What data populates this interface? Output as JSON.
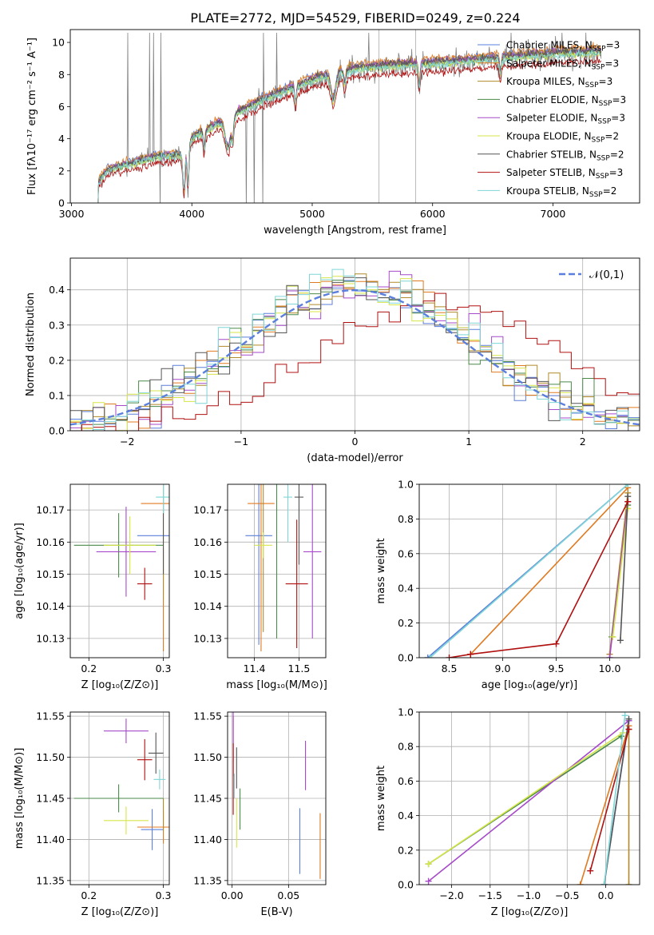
{
  "figure": {
    "title": "PLATE=2772, MJD=54529, FIBERID=0249, z=0.224"
  },
  "models": [
    {
      "name": "Chabrier MILES",
      "nssp": 3,
      "color": "#5b7fdc"
    },
    {
      "name": "Salpeter MILES",
      "nssp": 3,
      "color": "#e07a22"
    },
    {
      "name": "Kroupa MILES",
      "nssp": 3,
      "color": "#b08a2a"
    },
    {
      "name": "Chabrier ELODIE",
      "nssp": 3,
      "color": "#4a8a4a"
    },
    {
      "name": "Salpeter ELODIE",
      "nssp": 3,
      "color": "#a64ac9"
    },
    {
      "name": "Kroupa ELODIE",
      "nssp": 2,
      "color": "#d7e64a"
    },
    {
      "name": "Chabrier STELIB",
      "nssp": 2,
      "color": "#555555"
    },
    {
      "name": "Salpeter STELIB",
      "nssp": 3,
      "color": "#b01010"
    },
    {
      "name": "Kroupa STELIB",
      "nssp": 2,
      "color": "#7fd6d6"
    }
  ],
  "chart_data": [
    {
      "id": "spectrum",
      "type": "line",
      "xlabel": "wavelength [Angstrom, rest frame]",
      "ylabel": "Flux [fλ10⁻¹⁷ erg cm⁻² s⁻¹ A⁻¹]",
      "xlim": [
        2990,
        7720
      ],
      "ylim": [
        0,
        10.8
      ],
      "xticks": [
        3000,
        4000,
        5000,
        6000,
        7000
      ],
      "yticks": [
        0,
        2,
        4,
        6,
        8,
        10
      ],
      "data_start": 3220,
      "data_end": 7400,
      "continuum_knots": {
        "x": [
          3220,
          3300,
          3500,
          3700,
          3900,
          4000,
          4200,
          4400,
          4600,
          5000,
          5300,
          5500,
          6000,
          6500,
          7000,
          7400
        ],
        "y": [
          1.2,
          2.0,
          2.4,
          2.8,
          2.9,
          4.0,
          4.8,
          5.6,
          6.4,
          7.6,
          8.2,
          8.4,
          8.6,
          8.9,
          9.2,
          9.3
        ]
      },
      "grid": false,
      "legend": "top-right"
    },
    {
      "id": "residuals",
      "type": "histogram",
      "xlabel": "(data-model)/error",
      "ylabel": "Normed distribution",
      "xlim": [
        -2.5,
        2.5
      ],
      "ylim": [
        0,
        0.49
      ],
      "xticks": [
        -2,
        -1,
        0,
        1,
        2
      ],
      "yticks": [
        0.0,
        0.1,
        0.2,
        0.3,
        0.4
      ],
      "bin_width": 0.1,
      "reference": {
        "label": "𝒩(0,1)",
        "mean": 0,
        "sigma": 1,
        "color": "#5b7fdc"
      },
      "series_shift": [
        0.45,
        0.5,
        0.55,
        0.48,
        0.52,
        0.5,
        0.5,
        0.95,
        0.42
      ],
      "series_sigma": [
        1.02,
        0.98,
        1.0,
        1.01,
        0.99,
        1.0,
        1.0,
        1.05,
        0.97
      ],
      "grid": true,
      "legend": "top-right"
    },
    {
      "id": "age_vs_Z",
      "type": "errorbar",
      "xlabel": "Z [log₁₀(Z/Z⊙)]",
      "ylabel": "age  [log₁₀(age/yr)]",
      "xlim": [
        0.175,
        0.308
      ],
      "ylim": [
        10.124,
        10.178
      ],
      "xticks": [
        0.2,
        0.3
      ],
      "yticks": [
        10.13,
        10.14,
        10.15,
        10.16,
        10.17
      ],
      "grid": true,
      "points": [
        {
          "x": 0.3,
          "y": 10.162,
          "xerr": 0.035,
          "yerr": 0.0
        },
        {
          "x": 0.3,
          "y": 10.172,
          "xerr": 0.03,
          "yerr": 0.046
        },
        {
          "x": 0.3,
          "y": 10.15,
          "xerr": 0.0,
          "yerr": 0.008
        },
        {
          "x": 0.24,
          "y": 10.159,
          "xerr": 0.06,
          "yerr": 0.01
        },
        {
          "x": 0.25,
          "y": 10.157,
          "xerr": 0.04,
          "yerr": 0.014
        },
        {
          "x": 0.255,
          "y": 10.159,
          "xerr": 0.035,
          "yerr": 0.009
        },
        {
          "x": 0.3,
          "y": 10.17,
          "xerr": 0.0,
          "yerr": 0.02
        },
        {
          "x": 0.275,
          "y": 10.147,
          "xerr": 0.01,
          "yerr": 0.005
        },
        {
          "x": 0.3,
          "y": 10.174,
          "xerr": 0.01,
          "yerr": 0.005
        }
      ]
    },
    {
      "id": "age_vs_mass",
      "type": "errorbar",
      "xlabel": "mass [log₁₀(M/M⊙)]",
      "ylabel": "",
      "xlim": [
        11.34,
        11.56
      ],
      "ylim": [
        10.124,
        10.178
      ],
      "xticks": [
        11.4,
        11.5
      ],
      "yticks": [
        10.13,
        10.14,
        10.15,
        10.16,
        10.17
      ],
      "grid": true,
      "points": [
        {
          "x": 11.41,
          "y": 10.162,
          "xerr": 0.03,
          "yerr": 0.034
        },
        {
          "x": 11.415,
          "y": 10.172,
          "xerr": 0.03,
          "yerr": 0.046
        },
        {
          "x": 11.42,
          "y": 10.16,
          "xerr": 0.0,
          "yerr": 0.028
        },
        {
          "x": 11.45,
          "y": 10.159,
          "xerr": 0.0,
          "yerr": 0.029
        },
        {
          "x": 11.53,
          "y": 10.157,
          "xerr": 0.02,
          "yerr": 0.027
        },
        {
          "x": 11.42,
          "y": 10.159,
          "xerr": 0.02,
          "yerr": 0.004
        },
        {
          "x": 11.5,
          "y": 10.174,
          "xerr": 0.01,
          "yerr": 0.021
        },
        {
          "x": 11.495,
          "y": 10.147,
          "xerr": 0.025,
          "yerr": 0.02
        },
        {
          "x": 11.475,
          "y": 10.174,
          "xerr": 0.01,
          "yerr": 0.014
        }
      ]
    },
    {
      "id": "weight_vs_age",
      "type": "line",
      "xlabel": "age  [log₁₀(age/yr)]",
      "ylabel": "mass weight",
      "xlim": [
        8.22,
        10.28
      ],
      "ylim": [
        0,
        1.0
      ],
      "xticks": [
        8.5,
        9.0,
        9.5,
        10.0
      ],
      "yticks": [
        0.0,
        0.2,
        0.4,
        0.6,
        0.8,
        1.0
      ],
      "grid": true,
      "series": [
        {
          "x": [
            8.3,
            10.17
          ],
          "y": [
            0.0,
            1.0
          ]
        },
        {
          "x": [
            8.7,
            10.17
          ],
          "y": [
            0.02,
            0.98
          ]
        },
        {
          "x": [
            10.0,
            10.17
          ],
          "y": [
            0.02,
            0.95
          ]
        },
        {
          "x": [
            10.02,
            10.17
          ],
          "y": [
            0.12,
            0.88
          ]
        },
        {
          "x": [
            10.0,
            10.17
          ],
          "y": [
            0.0,
            0.9
          ]
        },
        {
          "x": [
            10.03,
            10.17
          ],
          "y": [
            0.12,
            0.86
          ]
        },
        {
          "x": [
            10.1,
            10.17
          ],
          "y": [
            0.1,
            0.93
          ]
        },
        {
          "x": [
            8.5,
            8.7,
            9.5,
            10.17
          ],
          "y": [
            0.0,
            0.02,
            0.08,
            0.9
          ]
        },
        {
          "x": [
            8.32,
            10.17
          ],
          "y": [
            0.0,
            1.0
          ]
        }
      ]
    },
    {
      "id": "mass_vs_Z",
      "type": "errorbar",
      "xlabel": "Z [log₁₀(Z/Z⊙)]",
      "ylabel": "mass [log₁₀(M/M⊙)]",
      "xlim": [
        0.175,
        0.308
      ],
      "ylim": [
        11.345,
        11.555
      ],
      "xticks": [
        0.2,
        0.3
      ],
      "yticks": [
        11.35,
        11.4,
        11.45,
        11.5,
        11.55
      ],
      "grid": true,
      "points": [
        {
          "x": 0.285,
          "y": 11.412,
          "xerr": 0.015,
          "yerr": 0.025
        },
        {
          "x": 0.3,
          "y": 11.415,
          "xerr": 0.035,
          "yerr": 0.02
        },
        {
          "x": 0.3,
          "y": 11.43,
          "xerr": 0.0,
          "yerr": 0.02
        },
        {
          "x": 0.24,
          "y": 11.45,
          "xerr": 0.06,
          "yerr": 0.017
        },
        {
          "x": 0.25,
          "y": 11.532,
          "xerr": 0.03,
          "yerr": 0.015
        },
        {
          "x": 0.25,
          "y": 11.423,
          "xerr": 0.03,
          "yerr": 0.017
        },
        {
          "x": 0.29,
          "y": 11.505,
          "xerr": 0.01,
          "yerr": 0.025
        },
        {
          "x": 0.275,
          "y": 11.497,
          "xerr": 0.01,
          "yerr": 0.025
        },
        {
          "x": 0.295,
          "y": 11.473,
          "xerr": 0.008,
          "yerr": 0.012
        }
      ]
    },
    {
      "id": "mass_vs_ebv",
      "type": "errorbar",
      "xlabel": "E(B-V)",
      "ylabel": "",
      "xlim": [
        -0.004,
        0.083
      ],
      "ylim": [
        11.345,
        11.555
      ],
      "xticks": [
        0.0,
        0.05
      ],
      "yticks": [
        11.35,
        11.4,
        11.45,
        11.5,
        11.55
      ],
      "grid": true,
      "points": [
        {
          "x": 0.06,
          "y": 11.398,
          "xerr": 0,
          "yerr": 0.04
        },
        {
          "x": 0.078,
          "y": 11.392,
          "xerr": 0,
          "yerr": 0.04
        },
        {
          "x": 0.001,
          "y": 11.49,
          "xerr": 0,
          "yerr": 0.06
        },
        {
          "x": 0.007,
          "y": 11.437,
          "xerr": 0,
          "yerr": 0.025
        },
        {
          "x": 0.001,
          "y": 11.525,
          "xerr": 0,
          "yerr": 0.03
        },
        {
          "x": 0.004,
          "y": 11.42,
          "xerr": 0,
          "yerr": 0.03
        },
        {
          "x": 0.004,
          "y": 11.487,
          "xerr": 0,
          "yerr": 0.025
        },
        {
          "x": 0.001,
          "y": 11.497,
          "xerr": 0,
          "yerr": 0.02
        },
        {
          "x": 0.002,
          "y": 11.465,
          "xerr": 0,
          "yerr": 0.015
        },
        {
          "x": 0.065,
          "y": 11.49,
          "xerr": 0,
          "yerr": 0.03
        }
      ],
      "point_series": [
        0,
        1,
        7,
        3,
        4,
        5,
        6,
        7,
        8,
        4
      ]
    },
    {
      "id": "weight_vs_Z",
      "type": "line",
      "xlabel": "Z [log₁₀(Z/Z⊙)]",
      "ylabel": "mass weight",
      "xlim": [
        -2.42,
        0.44
      ],
      "ylim": [
        0,
        1.0
      ],
      "xticks": [
        -2.0,
        -1.5,
        -1.0,
        -0.5,
        0.0
      ],
      "yticks": [
        0.0,
        0.2,
        0.4,
        0.6,
        0.8,
        1.0
      ],
      "grid": true,
      "series": [
        {
          "x": [
            -0.02,
            0.3
          ],
          "y": [
            0.0,
            0.95
          ]
        },
        {
          "x": [
            -0.33,
            0.3
          ],
          "y": [
            0.0,
            0.92
          ]
        },
        {
          "x": [
            0.3,
            0.3
          ],
          "y": [
            0.0,
            0.9
          ]
        },
        {
          "x": [
            -2.3,
            0.2
          ],
          "y": [
            0.12,
            0.86
          ]
        },
        {
          "x": [
            -2.3,
            0.3
          ],
          "y": [
            0.02,
            0.95
          ]
        },
        {
          "x": [
            -2.3,
            0.22
          ],
          "y": [
            0.12,
            0.88
          ]
        },
        {
          "x": [
            -0.02,
            0.3
          ],
          "y": [
            0.0,
            0.96
          ]
        },
        {
          "x": [
            -0.2,
            0.3
          ],
          "y": [
            0.08,
            0.9
          ]
        },
        {
          "x": [
            -0.02,
            0.25
          ],
          "y": [
            0.0,
            0.98
          ]
        }
      ]
    }
  ]
}
